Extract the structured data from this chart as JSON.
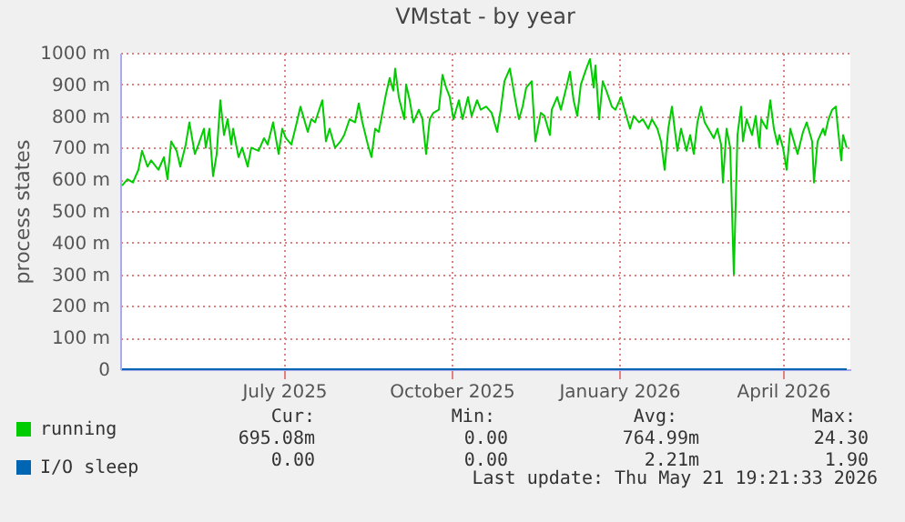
{
  "chart_data": {
    "type": "line",
    "title": "VMstat - by year",
    "ylabel": "process states",
    "xlim": [
      "2025-04-02",
      "2026-05-08"
    ],
    "xticks": [
      {
        "value": "2025-07-01",
        "label": "July 2025"
      },
      {
        "value": "2025-10-01",
        "label": "October 2025"
      },
      {
        "value": "2026-01-01",
        "label": "January 2026"
      },
      {
        "value": "2026-04-01",
        "label": "April 2026"
      }
    ],
    "ylim": [
      0,
      1000
    ],
    "yticks": [
      0,
      {
        "value": 100,
        "label": "100 m"
      },
      {
        "value": 200,
        "label": "200 m"
      },
      {
        "value": 300,
        "label": "300 m"
      },
      {
        "value": 400,
        "label": "400 m"
      },
      {
        "value": 500,
        "label": "500 m"
      },
      {
        "value": 600,
        "label": "600 m"
      },
      {
        "value": 700,
        "label": "700 m"
      },
      {
        "value": 800,
        "label": "800 m"
      },
      {
        "value": 900,
        "label": "900 m"
      },
      {
        "value": 1000,
        "label": "1000 m"
      }
    ],
    "grid": true,
    "legend": "bottom",
    "marker": "none",
    "line_style": "solid",
    "series": [
      {
        "name": "running",
        "color": "#00cc00",
        "x": [
          "2025-04-03",
          "2025-04-06",
          "2025-04-09",
          "2025-04-12",
          "2025-04-14",
          "2025-04-17",
          "2025-04-19",
          "2025-04-23",
          "2025-04-26",
          "2025-04-28",
          "2025-04-30",
          "2025-05-03",
          "2025-05-05",
          "2025-05-08",
          "2025-05-10",
          "2025-05-13",
          "2025-05-15",
          "2025-05-18",
          "2025-05-19",
          "2025-05-21",
          "2025-05-23",
          "2025-05-25",
          "2025-05-27",
          "2025-05-29",
          "2025-05-31",
          "2025-06-02",
          "2025-06-03",
          "2025-06-06",
          "2025-06-08",
          "2025-06-11",
          "2025-06-13",
          "2025-06-17",
          "2025-06-20",
          "2025-06-22",
          "2025-06-25",
          "2025-06-28",
          "2025-06-30",
          "2025-07-02",
          "2025-07-05",
          "2025-07-08",
          "2025-07-10",
          "2025-07-12",
          "2025-07-14",
          "2025-07-16",
          "2025-07-18",
          "2025-07-22",
          "2025-07-24",
          "2025-07-26",
          "2025-07-29",
          "2025-08-01",
          "2025-08-03",
          "2025-08-06",
          "2025-08-09",
          "2025-08-11",
          "2025-08-13",
          "2025-08-16",
          "2025-08-18",
          "2025-08-20",
          "2025-08-22",
          "2025-08-26",
          "2025-08-28",
          "2025-08-30",
          "2025-08-31",
          "2025-09-02",
          "2025-09-05",
          "2025-09-06",
          "2025-09-08",
          "2025-09-10",
          "2025-09-13",
          "2025-09-15",
          "2025-09-17",
          "2025-09-19",
          "2025-09-21",
          "2025-09-24",
          "2025-09-26",
          "2025-09-28",
          "2025-09-30",
          "2025-10-02",
          "2025-10-05",
          "2025-10-07",
          "2025-10-10",
          "2025-10-12",
          "2025-10-15",
          "2025-10-17",
          "2025-10-20",
          "2025-10-23",
          "2025-10-26",
          "2025-10-28",
          "2025-10-30",
          "2025-11-02",
          "2025-11-05",
          "2025-11-07",
          "2025-11-09",
          "2025-11-11",
          "2025-11-14",
          "2025-11-16",
          "2025-11-19",
          "2025-11-21",
          "2025-11-24",
          "2025-11-25",
          "2025-11-28",
          "2025-11-30",
          "2025-12-03",
          "2025-12-05",
          "2025-12-07",
          "2025-12-09",
          "2025-12-11",
          "2025-12-14",
          "2025-12-16",
          "2025-12-18",
          "2025-12-19",
          "2025-12-21",
          "2025-12-23",
          "2025-12-25",
          "2025-12-28",
          "2025-12-30",
          "2026-01-02",
          "2026-01-04",
          "2026-01-07",
          "2026-01-09",
          "2026-01-12",
          "2026-01-14",
          "2026-01-17",
          "2026-01-19",
          "2026-01-22",
          "2026-01-24",
          "2026-01-26",
          "2026-01-28",
          "2026-01-30",
          "2026-02-02",
          "2026-02-04",
          "2026-02-07",
          "2026-02-09",
          "2026-02-11",
          "2026-02-13",
          "2026-02-15",
          "2026-02-17",
          "2026-02-19",
          "2026-02-22",
          "2026-02-24",
          "2026-02-26",
          "2026-02-27",
          "2026-03-01",
          "2026-03-03",
          "2026-03-05",
          "2026-03-07",
          "2026-03-09",
          "2026-03-10",
          "2026-03-12",
          "2026-03-15",
          "2026-03-17",
          "2026-03-19",
          "2026-03-20",
          "2026-03-23",
          "2026-03-25",
          "2026-03-27",
          "2026-03-29",
          "2026-03-30",
          "2026-04-01",
          "2026-04-03",
          "2026-04-05",
          "2026-04-07",
          "2026-04-09",
          "2026-04-12",
          "2026-04-14",
          "2026-04-17",
          "2026-04-18",
          "2026-04-20",
          "2026-04-23",
          "2026-04-24",
          "2026-04-26",
          "2026-04-28",
          "2026-04-30",
          "2026-05-01",
          "2026-05-03",
          "2026-05-04",
          "2026-05-06"
        ],
        "values": [
          580,
          600,
          590,
          630,
          690,
          640,
          660,
          630,
          670,
          600,
          720,
          690,
          640,
          710,
          780,
          680,
          710,
          760,
          700,
          760,
          610,
          680,
          850,
          740,
          790,
          710,
          760,
          670,
          700,
          640,
          700,
          690,
          730,
          710,
          780,
          680,
          760,
          730,
          710,
          780,
          830,
          790,
          750,
          790,
          780,
          850,
          720,
          760,
          700,
          720,
          740,
          790,
          780,
          840,
          780,
          710,
          670,
          760,
          750,
          870,
          920,
          880,
          950,
          860,
          790,
          900,
          850,
          780,
          820,
          790,
          680,
          790,
          810,
          820,
          930,
          890,
          860,
          790,
          850,
          790,
          860,
          800,
          850,
          820,
          830,
          810,
          750,
          820,
          910,
          950,
          850,
          790,
          830,
          890,
          910,
          720,
          810,
          800,
          740,
          820,
          860,
          820,
          890,
          940,
          850,
          800,
          900,
          950,
          980,
          890,
          960,
          790,
          910,
          880,
          830,
          820,
          860,
          820,
          760,
          800,
          780,
          790,
          760,
          790,
          760,
          720,
          630,
          760,
          830,
          690,
          760,
          690,
          740,
          680,
          780,
          830,
          780,
          760,
          730,
          760,
          710,
          590,
          760,
          700,
          300,
          740,
          830,
          720,
          790,
          740,
          800,
          700,
          790,
          760,
          850,
          760,
          710,
          740,
          700,
          630,
          760,
          720,
          680,
          750,
          780,
          720,
          590,
          720,
          760,
          740,
          790,
          820,
          830,
          770,
          660,
          740,
          700
        ]
      },
      {
        "name": "I/O sleep",
        "color": "#0066b3",
        "x": [
          "2025-04-03",
          "2025-06-01",
          "2025-08-01",
          "2025-10-01",
          "2025-12-01",
          "2026-02-01",
          "2026-04-01",
          "2026-05-06"
        ],
        "values": [
          0,
          0,
          0,
          0,
          0,
          0,
          0,
          0
        ]
      }
    ],
    "annotations": [
      "Cur:",
      "Min:",
      "Avg:",
      "Max:",
      "695.08m",
      "0.00",
      "764.99m",
      "24.30",
      "0.00",
      "0.00",
      "2.21m",
      "1.90",
      "Last update: Thu May 21 19:21:33 2026"
    ]
  }
}
